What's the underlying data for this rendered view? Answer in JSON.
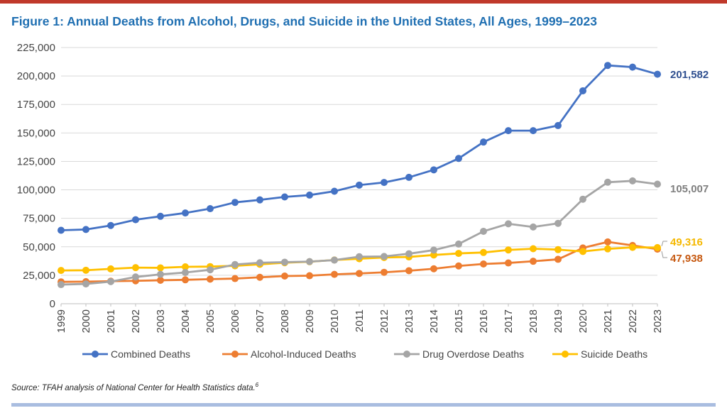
{
  "header": {
    "title": "Figure 1: Annual Deaths from Alcohol, Drugs, and Suicide in the United States, All Ages, 1999–2023"
  },
  "footer": {
    "source": "Source: TFAH analysis of National Center for Health Statistics data.",
    "footnote_ref": "6"
  },
  "colors": {
    "combined": "#4472c4",
    "alcohol": "#ed7d31",
    "drug": "#a5a5a5",
    "suicide": "#ffc000",
    "title": "#1f6fb2",
    "top_rule": "#c0392b",
    "bottom_rule": "#a9bde0",
    "combined_label": "#2f4f8f",
    "drug_label": "#7f7f7f",
    "alcohol_label": "#c65911",
    "suicide_label": "#f5b800"
  },
  "chart_data": {
    "type": "line",
    "title": "Figure 1: Annual Deaths from Alcohol, Drugs, and Suicide in the United States, All Ages, 1999–2023",
    "xlabel": "",
    "ylabel": "",
    "ylim": [
      0,
      225000
    ],
    "yticks": [
      0,
      25000,
      50000,
      75000,
      100000,
      125000,
      150000,
      175000,
      200000,
      225000
    ],
    "ytick_labels": [
      "0",
      "25,000",
      "50,000",
      "75,000",
      "100,000",
      "125,000",
      "150,000",
      "175,000",
      "200,000",
      "225,000"
    ],
    "grid": true,
    "legend_position": "bottom",
    "x": [
      "1999",
      "2000",
      "2001",
      "2002",
      "2003",
      "2004",
      "2005",
      "2006",
      "2007",
      "2008",
      "2009",
      "2010",
      "2011",
      "2012",
      "2013",
      "2014",
      "2015",
      "2016",
      "2017",
      "2018",
      "2019",
      "2020",
      "2021",
      "2022",
      "2023"
    ],
    "series": [
      {
        "name": "Combined Deaths",
        "color_key": "combined",
        "values": [
          64500,
          65200,
          68700,
          73800,
          76800,
          79700,
          83500,
          89000,
          91200,
          93800,
          95400,
          98800,
          104200,
          106500,
          111000,
          117600,
          127600,
          142000,
          152000,
          152000,
          156500,
          187000,
          209300,
          207800,
          201582
        ]
      },
      {
        "name": "Alcohol-Induced Deaths",
        "color_key": "alcohol",
        "values": [
          19200,
          19400,
          19800,
          20100,
          20600,
          21000,
          21600,
          22100,
          23200,
          24300,
          24600,
          25800,
          26600,
          27600,
          29000,
          30700,
          33200,
          34900,
          35800,
          37300,
          39000,
          49000,
          54300,
          51200,
          47938
        ]
      },
      {
        "name": "Drug Overdose Deaths",
        "color_key": "drug",
        "values": [
          16800,
          17400,
          19400,
          23500,
          25800,
          27400,
          29800,
          34400,
          36000,
          36500,
          37000,
          38300,
          41300,
          41500,
          43900,
          47100,
          52400,
          63600,
          70200,
          67400,
          70600,
          91800,
          106700,
          107900,
          105007
        ]
      },
      {
        "name": "Suicide Deaths",
        "color_key": "suicide",
        "values": [
          29200,
          29400,
          30600,
          31700,
          31500,
          32400,
          32600,
          33300,
          34600,
          36000,
          36900,
          38400,
          39500,
          40600,
          41100,
          42800,
          44200,
          45000,
          47200,
          48300,
          47500,
          45900,
          48200,
          49500,
          49316
        ]
      }
    ],
    "end_labels": [
      {
        "series": "Combined Deaths",
        "text": "201,582",
        "color_key": "combined_label"
      },
      {
        "series": "Drug Overdose Deaths",
        "text": "105,007",
        "color_key": "drug_label"
      },
      {
        "series": "Suicide Deaths",
        "text": "49,316",
        "color_key": "suicide_label"
      },
      {
        "series": "Alcohol-Induced Deaths",
        "text": "47,938",
        "color_key": "alcohol_label"
      }
    ]
  }
}
